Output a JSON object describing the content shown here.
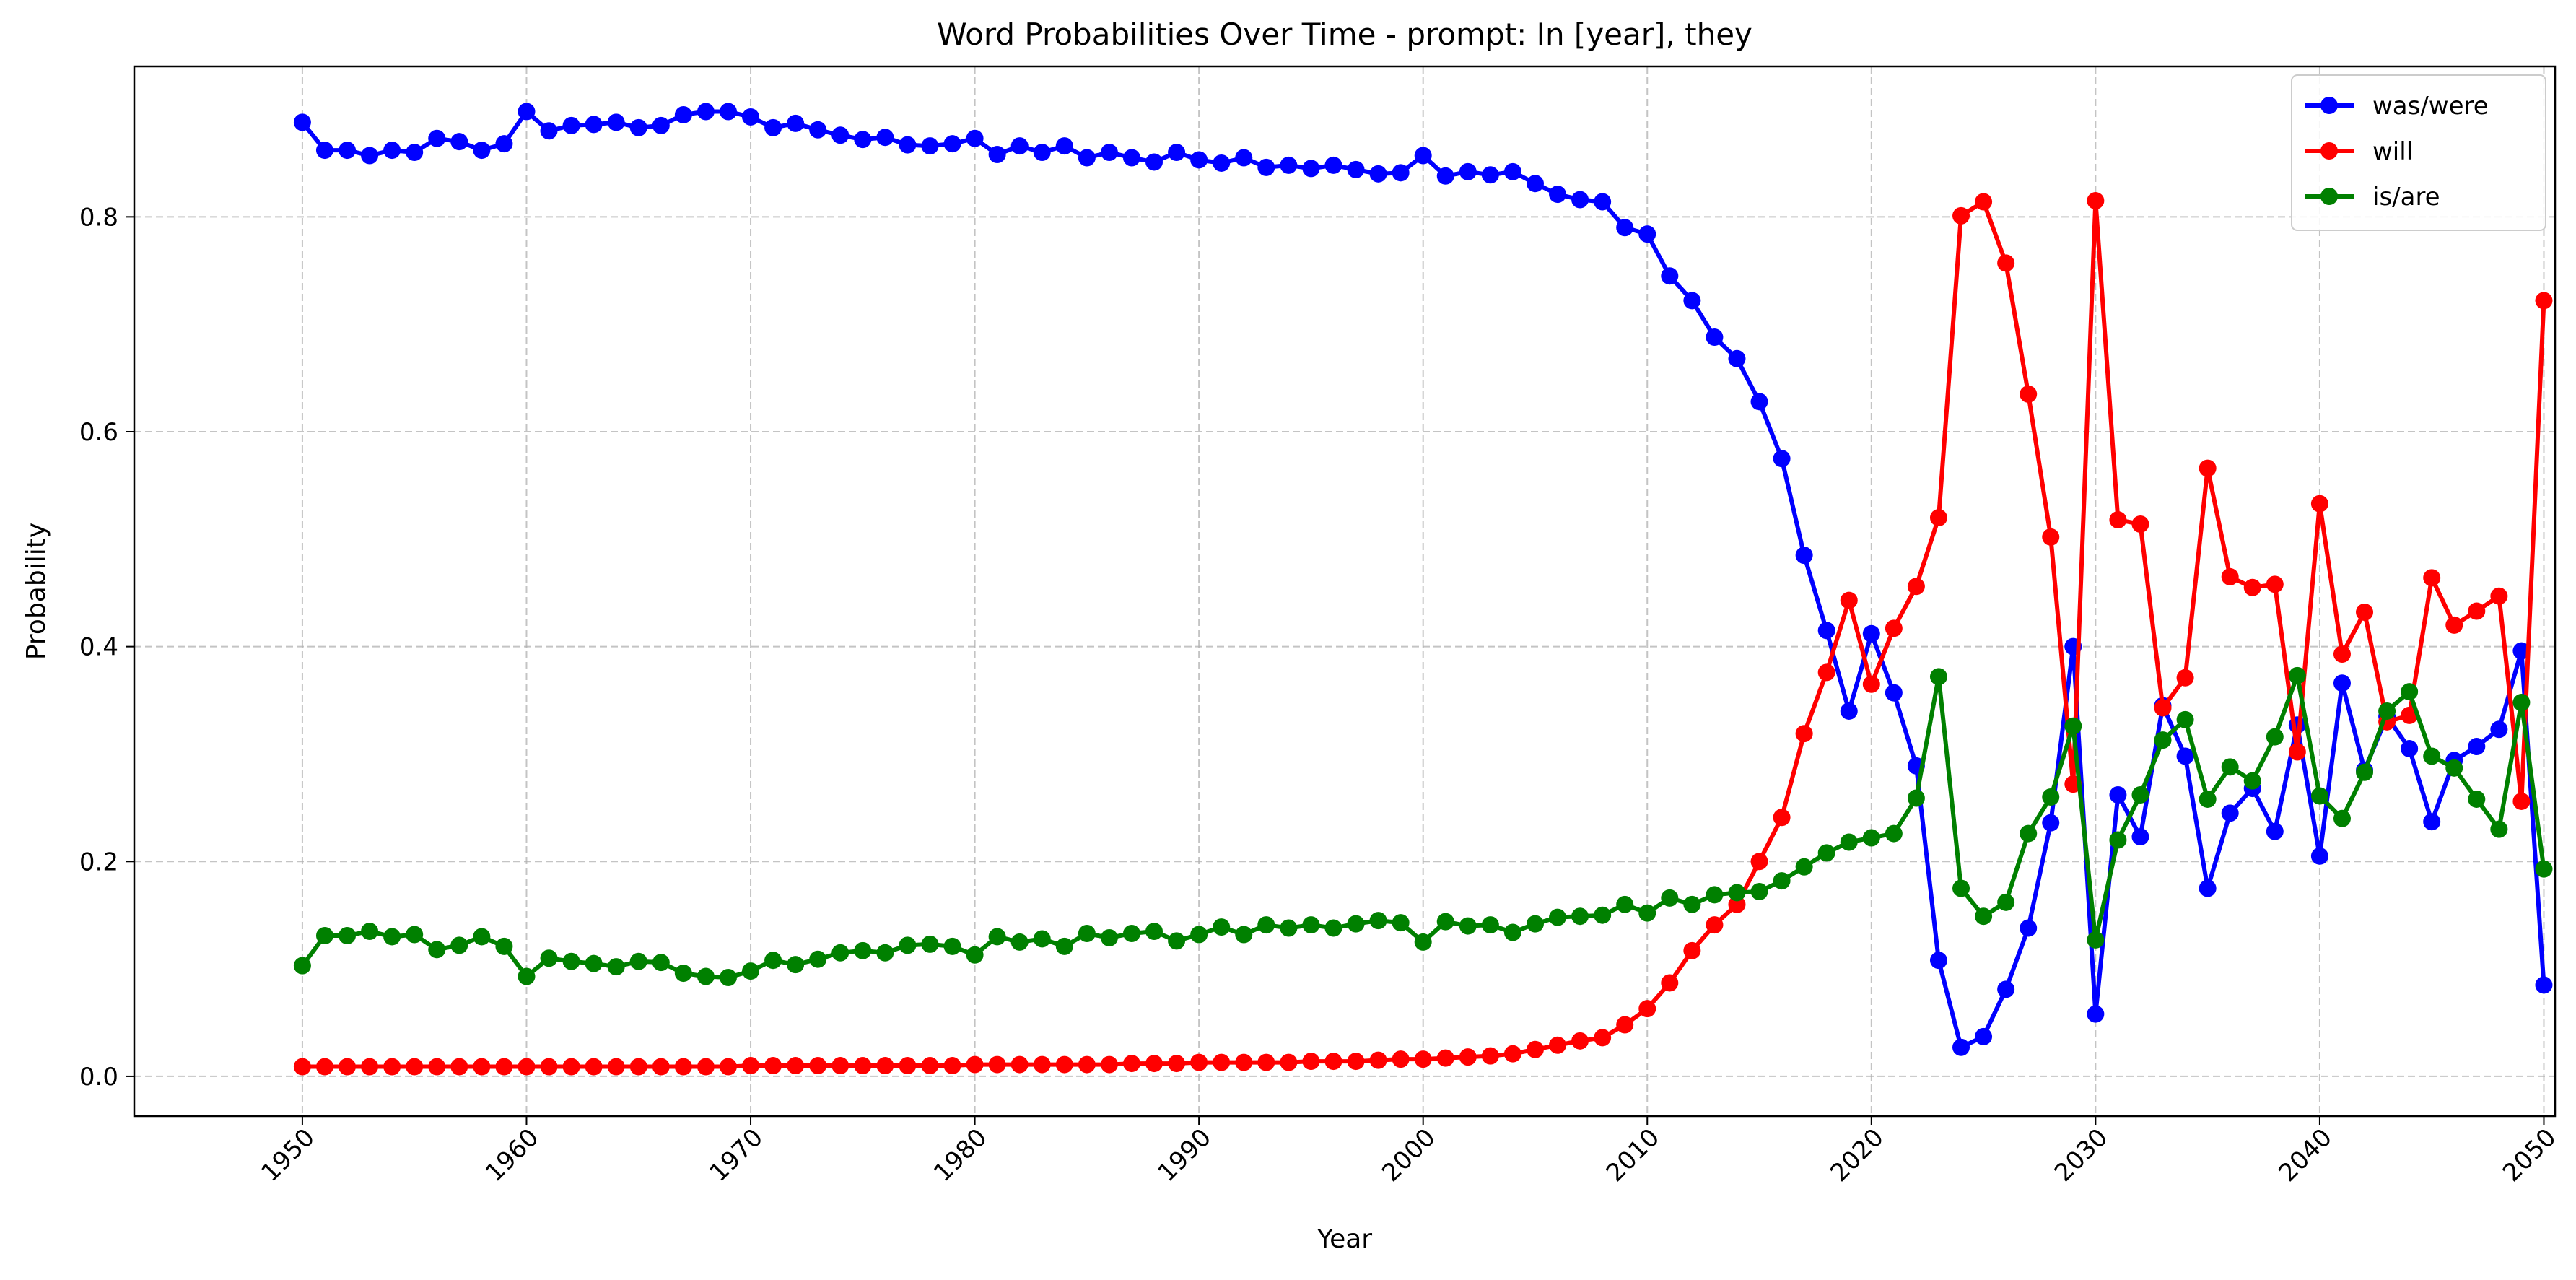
{
  "chart_data": {
    "type": "line",
    "title": "Word Probabilities Over Time - prompt: In [year], they",
    "xlabel": "Year",
    "ylabel": "Probability",
    "xlim": [
      1942.5,
      2050.5
    ],
    "ylim": [
      -0.037,
      0.94
    ],
    "x_ticks": [
      1950,
      1960,
      1970,
      1980,
      1990,
      2000,
      2010,
      2020,
      2030,
      2040,
      2050
    ],
    "x_tick_labels": [
      "1950",
      "1960",
      "1970",
      "1980",
      "1990",
      "2000",
      "2010",
      "2020",
      "2030",
      "2040",
      "2050"
    ],
    "y_ticks": [
      0.0,
      0.2,
      0.4,
      0.6,
      0.8
    ],
    "y_tick_labels": [
      "0.0",
      "0.2",
      "0.4",
      "0.6",
      "0.8"
    ],
    "grid": true,
    "legend_position": "top-right",
    "x_start": 1950,
    "x_end": 2050,
    "series": [
      {
        "name": "was/were",
        "color": "#0000ff",
        "values": [
          0.888,
          0.862,
          0.862,
          0.857,
          0.862,
          0.86,
          0.873,
          0.87,
          0.862,
          0.868,
          0.898,
          0.88,
          0.885,
          0.886,
          0.888,
          0.883,
          0.885,
          0.895,
          0.898,
          0.898,
          0.893,
          0.883,
          0.887,
          0.881,
          0.876,
          0.872,
          0.874,
          0.867,
          0.866,
          0.868,
          0.873,
          0.858,
          0.866,
          0.86,
          0.866,
          0.855,
          0.86,
          0.855,
          0.851,
          0.86,
          0.853,
          0.85,
          0.855,
          0.846,
          0.848,
          0.845,
          0.848,
          0.844,
          0.84,
          0.841,
          0.857,
          0.838,
          0.842,
          0.839,
          0.842,
          0.831,
          0.821,
          0.816,
          0.814,
          0.79,
          0.784,
          0.745,
          0.722,
          0.688,
          0.668,
          0.628,
          0.575,
          0.485,
          0.415,
          0.34,
          0.412,
          0.357,
          0.289,
          0.108,
          0.027,
          0.037,
          0.081,
          0.138,
          0.236,
          0.4,
          0.058,
          0.262,
          0.223,
          0.345,
          0.298,
          0.175,
          0.245,
          0.268,
          0.228,
          0.327,
          0.205,
          0.366,
          0.285,
          0.335,
          0.305,
          0.237,
          0.294,
          0.307,
          0.323,
          0.396,
          0.085
        ]
      },
      {
        "name": "will",
        "color": "#ff0000",
        "values": [
          0.009,
          0.009,
          0.009,
          0.009,
          0.009,
          0.009,
          0.009,
          0.009,
          0.009,
          0.009,
          0.009,
          0.009,
          0.009,
          0.009,
          0.009,
          0.009,
          0.009,
          0.009,
          0.009,
          0.009,
          0.01,
          0.01,
          0.01,
          0.01,
          0.01,
          0.01,
          0.01,
          0.01,
          0.01,
          0.01,
          0.011,
          0.011,
          0.011,
          0.011,
          0.011,
          0.011,
          0.011,
          0.012,
          0.012,
          0.012,
          0.013,
          0.013,
          0.013,
          0.013,
          0.013,
          0.014,
          0.014,
          0.014,
          0.015,
          0.016,
          0.016,
          0.017,
          0.018,
          0.019,
          0.021,
          0.025,
          0.029,
          0.033,
          0.036,
          0.048,
          0.063,
          0.087,
          0.117,
          0.141,
          0.16,
          0.2,
          0.241,
          0.319,
          0.376,
          0.443,
          0.365,
          0.417,
          0.456,
          0.52,
          0.801,
          0.814,
          0.757,
          0.635,
          0.502,
          0.272,
          0.815,
          0.518,
          0.514,
          0.343,
          0.371,
          0.566,
          0.465,
          0.455,
          0.458,
          0.302,
          0.533,
          0.393,
          0.432,
          0.33,
          0.336,
          0.464,
          0.42,
          0.433,
          0.447,
          0.256,
          0.722
        ]
      },
      {
        "name": "is/are",
        "color": "#008000",
        "values": [
          0.103,
          0.131,
          0.131,
          0.135,
          0.13,
          0.132,
          0.118,
          0.122,
          0.13,
          0.121,
          0.093,
          0.11,
          0.107,
          0.105,
          0.102,
          0.107,
          0.106,
          0.096,
          0.093,
          0.092,
          0.098,
          0.108,
          0.104,
          0.109,
          0.115,
          0.117,
          0.115,
          0.122,
          0.123,
          0.121,
          0.113,
          0.13,
          0.125,
          0.128,
          0.121,
          0.133,
          0.129,
          0.133,
          0.135,
          0.126,
          0.132,
          0.139,
          0.132,
          0.141,
          0.138,
          0.141,
          0.138,
          0.142,
          0.145,
          0.143,
          0.125,
          0.144,
          0.14,
          0.141,
          0.134,
          0.142,
          0.148,
          0.149,
          0.15,
          0.16,
          0.152,
          0.166,
          0.16,
          0.169,
          0.171,
          0.172,
          0.182,
          0.195,
          0.208,
          0.218,
          0.222,
          0.226,
          0.259,
          0.372,
          0.175,
          0.149,
          0.162,
          0.226,
          0.26,
          0.326,
          0.127,
          0.22,
          0.262,
          0.313,
          0.332,
          0.258,
          0.288,
          0.275,
          0.316,
          0.373,
          0.261,
          0.24,
          0.283,
          0.34,
          0.358,
          0.298,
          0.287,
          0.258,
          0.23,
          0.348,
          0.193
        ]
      }
    ]
  }
}
